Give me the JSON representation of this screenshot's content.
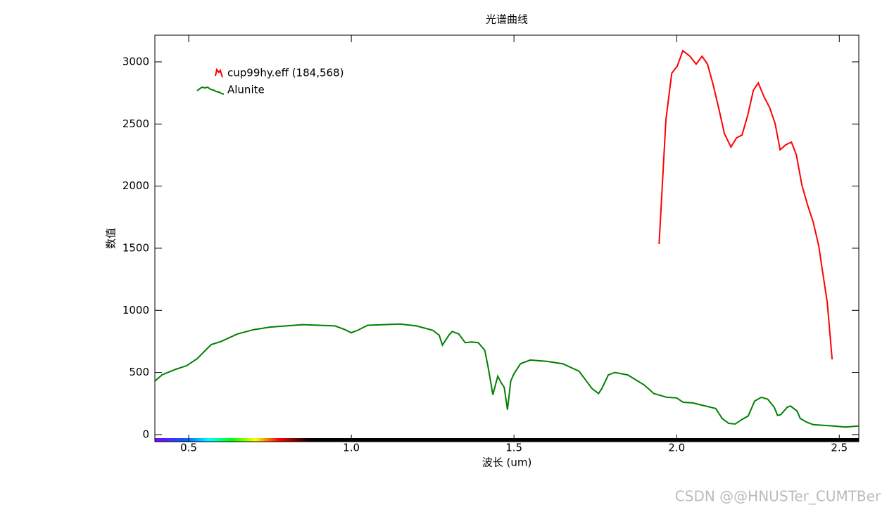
{
  "chart_data": {
    "type": "line",
    "title": "光谱曲线",
    "x_label": "波长 (um)",
    "y_label": "数值",
    "xlim": [
      0.396,
      2.56
    ],
    "ylim": [
      -57,
      3215
    ],
    "xticks": [
      0.5,
      {
        "value": 1,
        "label": "1.0"
      },
      1.5,
      {
        "value": 2,
        "label": "2.0"
      },
      2.5
    ],
    "yticks": [
      0,
      500,
      1000,
      1500,
      2000,
      2500,
      3000
    ],
    "legend": "upper left",
    "series": [
      {
        "name": "cup99hy.eff (184,568)",
        "color": "#ff0000",
        "x": [
          1.946,
          1.967,
          1.985,
          2.002,
          2.019,
          2.041,
          2.06,
          2.078,
          2.095,
          2.112,
          2.13,
          2.147,
          2.167,
          2.184,
          2.201,
          2.219,
          2.236,
          2.251,
          2.268,
          2.286,
          2.303,
          2.318,
          2.335,
          2.353,
          2.368,
          2.385,
          2.403,
          2.42,
          2.437,
          2.446,
          2.463,
          2.478
        ],
        "values": [
          1534,
          2535,
          2909,
          2966,
          3090,
          3045,
          2982,
          3045,
          2982,
          2818,
          2620,
          2422,
          2315,
          2388,
          2411,
          2575,
          2773,
          2830,
          2722,
          2632,
          2501,
          2292,
          2332,
          2354,
          2252,
          2009,
          1845,
          1709,
          1517,
          1358,
          1064,
          606
        ]
      },
      {
        "name": "Alunite",
        "color": "#008000",
        "x": [
          0.396,
          0.418,
          0.461,
          0.494,
          0.526,
          0.569,
          0.6,
          0.65,
          0.7,
          0.75,
          0.8,
          0.85,
          0.9,
          0.95,
          0.98,
          1.0,
          1.02,
          1.05,
          1.1,
          1.15,
          1.2,
          1.25,
          1.27,
          1.28,
          1.3,
          1.31,
          1.33,
          1.35,
          1.37,
          1.39,
          1.41,
          1.42,
          1.43,
          1.435,
          1.45,
          1.46,
          1.47,
          1.48,
          1.49,
          1.5,
          1.52,
          1.55,
          1.6,
          1.65,
          1.7,
          1.72,
          1.74,
          1.76,
          1.77,
          1.79,
          1.81,
          1.85,
          1.9,
          1.93,
          1.97,
          2.0,
          2.02,
          2.05,
          2.08,
          2.12,
          2.14,
          2.16,
          2.18,
          2.2,
          2.22,
          2.24,
          2.26,
          2.28,
          2.3,
          2.31,
          2.32,
          2.34,
          2.35,
          2.37,
          2.38,
          2.4,
          2.42,
          2.45,
          2.48,
          2.52,
          2.56
        ],
        "values": [
          430,
          481,
          526,
          555,
          611,
          724,
          750,
          810,
          845,
          865,
          875,
          885,
          880,
          875,
          845,
          820,
          840,
          880,
          885,
          890,
          875,
          840,
          800,
          720,
          800,
          830,
          810,
          740,
          745,
          740,
          680,
          550,
          400,
          320,
          470,
          420,
          380,
          200,
          430,
          490,
          570,
          600,
          590,
          570,
          510,
          440,
          370,
          330,
          370,
          480,
          500,
          480,
          400,
          330,
          300,
          295,
          260,
          255,
          235,
          210,
          130,
          90,
          85,
          120,
          150,
          270,
          300,
          285,
          220,
          155,
          160,
          220,
          230,
          190,
          130,
          100,
          80,
          75,
          70,
          60,
          70
        ]
      }
    ],
    "watermark": "CSDN @@HNUSTer_CUMTBer"
  }
}
